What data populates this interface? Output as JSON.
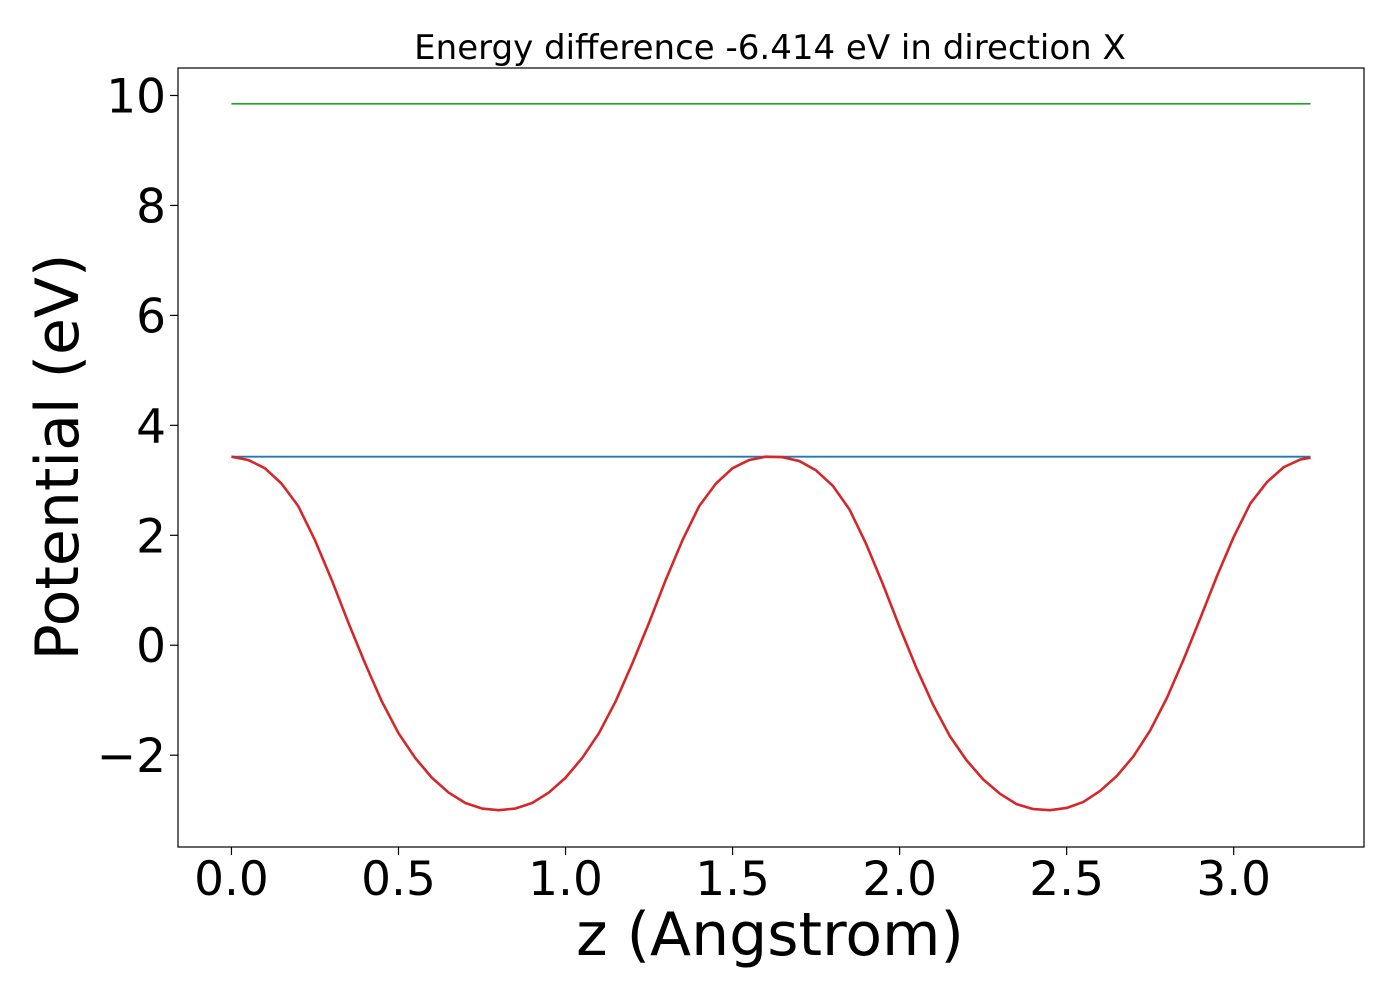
{
  "chart_data": {
    "type": "line",
    "title": "Energy difference -6.414 eV in direction X",
    "xlabel": "z (Angstrom)",
    "ylabel": "Potential (eV)",
    "xlim": [
      -0.16,
      3.39
    ],
    "ylim": [
      -3.67,
      10.5
    ],
    "grid": false,
    "legend": "none",
    "x_ticks": [
      0.0,
      0.5,
      1.0,
      1.5,
      2.0,
      2.5,
      3.0
    ],
    "x_tick_labels": [
      "0.0",
      "0.5",
      "1.0",
      "1.5",
      "2.0",
      "2.5",
      "3.0"
    ],
    "y_ticks": [
      -2,
      0,
      2,
      4,
      6,
      8,
      10
    ],
    "y_tick_labels": [
      "−2",
      "0",
      "2",
      "4",
      "6",
      "8",
      "10"
    ],
    "series": [
      {
        "color": "#2ca02c",
        "style": "flat",
        "x": [
          0.0,
          3.23
        ],
        "y": [
          9.85,
          9.85
        ]
      },
      {
        "color": "#1f77b4",
        "style": "flat",
        "x": [
          0.0,
          3.23
        ],
        "y": [
          3.43,
          3.43
        ]
      },
      {
        "color": "#d62728",
        "style": "curve",
        "x": [
          0.0,
          0.05,
          0.1,
          0.15,
          0.2,
          0.25,
          0.3,
          0.35,
          0.4,
          0.45,
          0.5,
          0.55,
          0.6,
          0.65,
          0.7,
          0.75,
          0.8,
          0.85,
          0.9,
          0.95,
          1.0,
          1.05,
          1.1,
          1.15,
          1.2,
          1.25,
          1.3,
          1.35,
          1.4,
          1.45,
          1.5,
          1.55,
          1.6,
          1.65,
          1.7,
          1.75,
          1.8,
          1.85,
          1.9,
          1.95,
          2.0,
          2.05,
          2.1,
          2.15,
          2.2,
          2.25,
          2.3,
          2.35,
          2.4,
          2.45,
          2.5,
          2.55,
          2.6,
          2.65,
          2.7,
          2.75,
          2.8,
          2.85,
          2.9,
          2.95,
          3.0,
          3.05,
          3.1,
          3.15,
          3.2,
          3.23
        ],
        "y": [
          3.43,
          3.37,
          3.22,
          2.94,
          2.53,
          1.91,
          1.19,
          0.41,
          -0.33,
          -1.02,
          -1.6,
          -2.05,
          -2.41,
          -2.68,
          -2.87,
          -2.97,
          -3.0,
          -2.97,
          -2.87,
          -2.68,
          -2.41,
          -2.05,
          -1.6,
          -1.02,
          -0.33,
          0.41,
          1.19,
          1.91,
          2.53,
          2.94,
          3.22,
          3.37,
          3.43,
          3.42,
          3.35,
          3.18,
          2.9,
          2.47,
          1.84,
          1.11,
          0.33,
          -0.41,
          -1.08,
          -1.65,
          -2.09,
          -2.44,
          -2.7,
          -2.89,
          -2.98,
          -3.0,
          -2.96,
          -2.85,
          -2.65,
          -2.38,
          -2.02,
          -1.55,
          -0.96,
          -0.26,
          0.49,
          1.26,
          1.97,
          2.58,
          2.97,
          3.24,
          3.38,
          3.41
        ]
      }
    ]
  }
}
